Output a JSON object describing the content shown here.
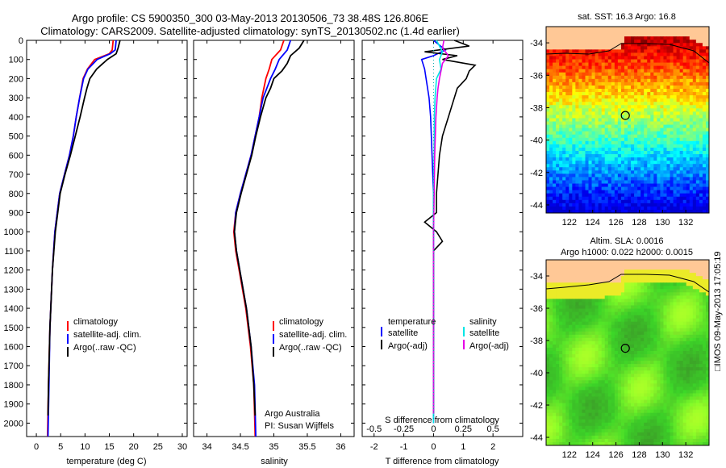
{
  "title_line1": "Argo profile: CS 5900350_300 03-May-2013 20130506_73 38.48S 126.806E",
  "title_line2": "Climatology: CARS2009. Satellite-adjusted climatology: synTS_20130502.nc (1.4d earlier)",
  "side_label": "□IMOS 09-May-2013 17:05:19",
  "colors": {
    "climatology": "#ff0000",
    "satellite": "#0000ff",
    "argo": "#000000",
    "sat_salinity": "#00e6e6",
    "argo_salinity": "#e600e6"
  },
  "chart_data": [
    {
      "type": "line",
      "name": "temperature-profile",
      "xlabel": "temperature (deg C)",
      "xlim": [
        -2,
        31
      ],
      "ylim": [
        2070,
        0
      ],
      "x_ticks": [
        "0",
        "5",
        "10",
        "15",
        "20",
        "25",
        "30"
      ],
      "y_ticks": [
        "0",
        "100",
        "200",
        "300",
        "400",
        "500",
        "600",
        "700",
        "800",
        "900",
        "1000",
        "1100",
        "1200",
        "1300",
        "1400",
        "1500",
        "1600",
        "1700",
        "1800",
        "1900",
        "2000"
      ],
      "legend": {
        "items": [
          "climatology",
          "satellite-adj. clim.",
          "Argo(..raw -QC)"
        ],
        "placement": "center"
      },
      "series": [
        {
          "name": "climatology",
          "depth": [
            0,
            50,
            70,
            100,
            150,
            200,
            300,
            400,
            500,
            600,
            700,
            800,
            1000,
            1200,
            1500,
            1800,
            2070
          ],
          "values": [
            15.8,
            15.6,
            15.0,
            12.0,
            10.5,
            9.6,
            8.9,
            8.2,
            7.6,
            6.8,
            5.8,
            4.8,
            3.8,
            3.3,
            2.8,
            2.5,
            2.3
          ]
        },
        {
          "name": "satellite-adj. clim.",
          "depth": [
            0,
            50,
            70,
            100,
            150,
            200,
            300,
            400,
            500,
            600,
            700,
            800,
            1000,
            1200,
            1500,
            1800,
            2070
          ],
          "values": [
            16.4,
            16.2,
            15.2,
            12.5,
            10.6,
            9.7,
            8.9,
            8.2,
            7.6,
            6.8,
            5.8,
            4.8,
            3.8,
            3.3,
            2.8,
            2.6,
            2.4
          ]
        },
        {
          "name": "Argo(..raw -QC)",
          "depth": [
            0,
            40,
            70,
            100,
            150,
            200,
            250,
            300,
            400,
            500,
            600,
            700,
            800,
            1000,
            1200,
            1500,
            1800,
            1960
          ],
          "values": [
            17.2,
            16.8,
            16.4,
            14.6,
            12.4,
            11.0,
            10.4,
            9.9,
            9.0,
            8.0,
            7.0,
            5.9,
            4.9,
            3.9,
            3.3,
            2.8,
            2.5,
            2.4
          ]
        }
      ]
    },
    {
      "type": "line",
      "name": "salinity-profile",
      "xlabel": "salinity",
      "xlim": [
        33.8,
        36.2
      ],
      "ylim": [
        2070,
        0
      ],
      "x_ticks": [
        "34",
        "34.5",
        "35",
        "35.5",
        "36"
      ],
      "legend": {
        "items": [
          "climatology",
          "satellite-adj. clim.",
          "Argo(..raw -QC)"
        ],
        "placement": "center"
      },
      "annotation": [
        "Argo Australia",
        "PI: Susan Wijffels"
      ],
      "series": [
        {
          "name": "climatology",
          "depth": [
            0,
            50,
            100,
            150,
            200,
            300,
            400,
            500,
            600,
            700,
            800,
            900,
            1000,
            1100,
            1200,
            1400,
            1600,
            1800,
            2070
          ],
          "values": [
            35.15,
            35.1,
            34.97,
            34.93,
            34.88,
            34.82,
            34.78,
            34.72,
            34.66,
            34.58,
            34.5,
            34.43,
            34.4,
            34.43,
            34.48,
            34.58,
            34.65,
            34.7,
            34.72
          ]
        },
        {
          "name": "satellite-adj. clim.",
          "depth": [
            0,
            50,
            100,
            150,
            200,
            300,
            400,
            500,
            600,
            700,
            800,
            900,
            1000,
            1100,
            1200,
            1400,
            1600,
            1800,
            2070
          ],
          "values": [
            35.25,
            35.2,
            35.08,
            35.02,
            34.95,
            34.84,
            34.78,
            34.72,
            34.66,
            34.58,
            34.5,
            34.43,
            34.41,
            34.44,
            34.49,
            34.59,
            34.66,
            34.71,
            34.73
          ]
        },
        {
          "name": "Argo(..raw -QC)",
          "depth": [
            0,
            40,
            80,
            120,
            160,
            200,
            250,
            300,
            400,
            500,
            600,
            700,
            800,
            900,
            1000,
            1100,
            1200,
            1400,
            1600,
            1800,
            1960
          ],
          "values": [
            35.45,
            35.38,
            35.25,
            35.2,
            35.12,
            35.0,
            34.95,
            34.88,
            34.8,
            34.73,
            34.67,
            34.59,
            34.51,
            34.44,
            34.41,
            34.44,
            34.49,
            34.59,
            34.66,
            34.7,
            34.72
          ]
        }
      ]
    },
    {
      "type": "line",
      "name": "difference-profile",
      "xlabel": "T difference from climatology",
      "x2label": "S difference from climatology",
      "xlim": [
        -2.4,
        3.0
      ],
      "ylim": [
        2070,
        0
      ],
      "x_ticks": [
        "-2",
        "-1",
        "0",
        "1",
        "2"
      ],
      "x2_ticks": [
        "-0.5",
        "-0.25",
        "0",
        "0.25",
        "0.5"
      ],
      "legend": {
        "items": [
          "temperature",
          "satellite",
          "Argo(-adj)",
          "salinity",
          "satellite",
          "Argo(-adj)"
        ],
        "placement": "center"
      },
      "series": [
        {
          "name": "satellite",
          "depth": [
            0,
            50,
            80,
            100,
            150,
            200,
            300,
            400,
            600,
            800,
            1000,
            1200,
            1500,
            1800,
            2000
          ],
          "values": [
            0.0,
            0.4,
            0.0,
            -0.4,
            -0.3,
            -0.25,
            -0.15,
            -0.1,
            -0.05,
            0.0,
            0.0,
            0.0,
            0.0,
            0.0,
            0.0
          ]
        },
        {
          "name": "Argo(-adj)",
          "depth": [
            0,
            30,
            60,
            80,
            100,
            130,
            160,
            200,
            250,
            300,
            400,
            500,
            600,
            800,
            900,
            950,
            1000,
            1050,
            1100,
            1200,
            1500,
            1800,
            1950
          ],
          "values": [
            0.7,
            1.2,
            -0.3,
            0.8,
            0.3,
            1.4,
            1.2,
            1.1,
            0.8,
            0.7,
            0.5,
            0.3,
            0.2,
            0.1,
            0.1,
            -0.3,
            0.1,
            0.3,
            0.0,
            0.0,
            0.0,
            0.0,
            0.0
          ]
        },
        {
          "name": "satellite",
          "depth": [
            0,
            60,
            100,
            150,
            200,
            300,
            400,
            600,
            800,
            1000,
            1400,
            2000
          ],
          "values": [
            0.1,
            0.3,
            0.2,
            0.25,
            0.1,
            0.05,
            0.03,
            0.02,
            0.0,
            0.0,
            0.0,
            0.0
          ]
        },
        {
          "name": "Argo(-adj)",
          "depth": [
            0,
            40,
            80,
            120,
            160,
            200,
            250,
            300,
            400,
            600,
            800,
            1000,
            1400,
            1950
          ],
          "values": [
            0.35,
            0.3,
            0.5,
            0.3,
            0.25,
            0.2,
            0.15,
            0.12,
            0.08,
            0.04,
            0.02,
            0.0,
            0.0,
            0.0
          ]
        }
      ]
    },
    {
      "type": "heatmap",
      "name": "sst-map",
      "title": "sat. SST: 16.3 Argo: 16.8",
      "xlim": [
        120,
        134
      ],
      "ylim": [
        -44.5,
        -33
      ],
      "x_ticks": [
        "122",
        "124",
        "126",
        "128",
        "130",
        "132"
      ],
      "y_ticks": [
        "-34",
        "-36",
        "-38",
        "-40",
        "-42",
        "-44"
      ],
      "marker": {
        "lon": 126.806,
        "lat": -38.48
      }
    },
    {
      "type": "heatmap",
      "name": "sla-map",
      "title_line1": "Altim. SLA: 0.0016",
      "title_line2": "Argo h1000: 0.022 h2000: 0.0015",
      "xlim": [
        120,
        134
      ],
      "ylim": [
        -44.5,
        -33
      ],
      "x_ticks": [
        "122",
        "124",
        "126",
        "128",
        "130",
        "132"
      ],
      "y_ticks": [
        "-34",
        "-36",
        "-38",
        "-40",
        "-42",
        "-44"
      ],
      "marker": {
        "lon": 126.806,
        "lat": -38.48
      }
    }
  ]
}
